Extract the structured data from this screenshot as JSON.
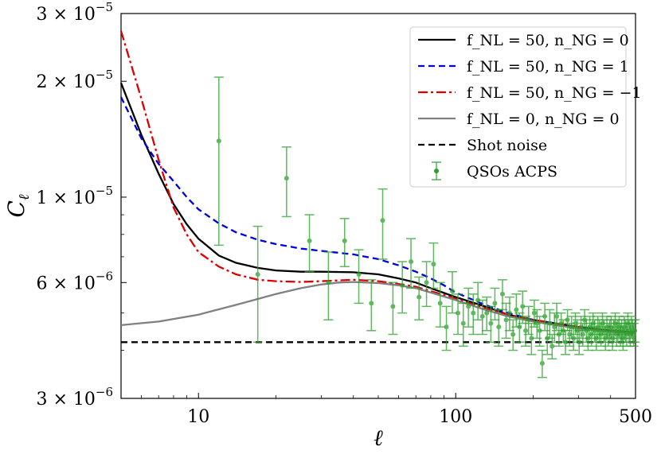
{
  "chart_data": {
    "type": "line",
    "xscale": "log",
    "yscale": "log",
    "xlim": [
      5,
      500
    ],
    "ylim": [
      3e-06,
      3e-05
    ],
    "xlabel": "ℓ",
    "ylabel": "C_ℓ",
    "x_ticks": [
      {
        "value": 10,
        "label": "10"
      },
      {
        "value": 100,
        "label": "100"
      },
      {
        "value": 500,
        "label": "500"
      }
    ],
    "y_ticks": [
      {
        "value": 3e-06,
        "base": "3 × 10",
        "exp": "−6"
      },
      {
        "value": 6e-06,
        "base": "6 × 10",
        "exp": "−6"
      },
      {
        "value": 1e-05,
        "base": "1 × 10",
        "exp": "−5"
      },
      {
        "value": 2e-05,
        "base": "2 × 10",
        "exp": "−5"
      },
      {
        "value": 3e-05,
        "base": "3 × 10",
        "exp": "−5"
      }
    ],
    "legend_position": "top-right",
    "series": [
      {
        "name": "f_NL = 50, n_NG = 0",
        "color": "#000000",
        "dash": "solid",
        "x": [
          5,
          6,
          7,
          8,
          9,
          10,
          12,
          14,
          17,
          20,
          25,
          30,
          40,
          50,
          60,
          70,
          80,
          100,
          130,
          160,
          200,
          300,
          400,
          500
        ],
        "y": [
          1.98e-05,
          1.45e-05,
          1.15e-05,
          9.6e-06,
          8.5e-06,
          7.8e-06,
          7.05e-06,
          6.75e-06,
          6.55e-06,
          6.45e-06,
          6.4e-06,
          6.4e-06,
          6.38e-06,
          6.3e-06,
          6.15e-06,
          6e-06,
          5.8e-06,
          5.5e-06,
          5.2e-06,
          4.95e-06,
          4.8e-06,
          4.6e-06,
          4.5e-06,
          4.45e-06
        ]
      },
      {
        "name": "f_NL = 50, n_NG = 1",
        "color": "#0000dd",
        "dash": "dashed",
        "x": [
          5,
          6,
          7,
          8,
          9,
          10,
          12,
          14,
          17,
          20,
          25,
          30,
          40,
          50,
          60,
          70,
          80,
          90,
          100,
          130,
          160,
          200,
          300,
          400,
          500
        ],
        "y": [
          1.82e-05,
          1.42e-05,
          1.22e-05,
          1.1e-05,
          1e-05,
          9.3e-06,
          8.55e-06,
          8.1e-06,
          7.75e-06,
          7.55e-06,
          7.35e-06,
          7.25e-06,
          7.1e-06,
          6.9e-06,
          6.65e-06,
          6.4e-06,
          6.15e-06,
          5.9e-06,
          5.65e-06,
          5.25e-06,
          5e-06,
          4.8e-06,
          4.6e-06,
          4.5e-06,
          4.45e-06
        ]
      },
      {
        "name": "f_NL = 50, n_NG = −1",
        "color": "#dd0000",
        "dash": "dashdot",
        "x": [
          5,
          6,
          7,
          8,
          9,
          10,
          12,
          14,
          17,
          20,
          25,
          30,
          40,
          50,
          60,
          70,
          80,
          100,
          130,
          160,
          200,
          300,
          400,
          500
        ],
        "y": [
          2.7e-05,
          1.8e-05,
          1.25e-05,
          9.4e-06,
          8e-06,
          7.2e-06,
          6.6e-06,
          6.3e-06,
          6.1e-06,
          6.05e-06,
          6.02e-06,
          6.05e-06,
          6.1e-06,
          6.05e-06,
          5.95e-06,
          5.85e-06,
          5.7e-06,
          5.45e-06,
          5.15e-06,
          4.95e-06,
          4.8e-06,
          4.6e-06,
          4.5e-06,
          4.45e-06
        ]
      },
      {
        "name": "f_NL = 0, n_NG = 0",
        "color": "#808080",
        "dash": "solid",
        "x": [
          5,
          7,
          10,
          14,
          20,
          25,
          30,
          35,
          40,
          50,
          60,
          70,
          80,
          100,
          130,
          160,
          200,
          300,
          400,
          500
        ],
        "y": [
          4.65e-06,
          4.75e-06,
          4.95e-06,
          5.25e-06,
          5.6e-06,
          5.8e-06,
          5.93e-06,
          6e-06,
          6.02e-06,
          5.98e-06,
          5.9e-06,
          5.8e-06,
          5.65e-06,
          5.4e-06,
          5.1e-06,
          4.9e-06,
          4.75e-06,
          4.55e-06,
          4.47e-06,
          4.43e-06
        ]
      },
      {
        "name": "Shot noise",
        "color": "#000000",
        "dash": "dashed",
        "x": [
          5,
          500
        ],
        "y": [
          4.2e-06,
          4.2e-06
        ]
      }
    ],
    "points": {
      "name": "QSOs ACPS",
      "color": "#2ca02c",
      "x": [
        12,
        17,
        22,
        27,
        32,
        37,
        42,
        47,
        52,
        57,
        62,
        67,
        72,
        77,
        82,
        87,
        92,
        97,
        102,
        107,
        112,
        117,
        122,
        127,
        132,
        137,
        142,
        147,
        152,
        157,
        162,
        167,
        172,
        177,
        182,
        187,
        192,
        197,
        202,
        207,
        212,
        217,
        222,
        227,
        232,
        237,
        242,
        247,
        252,
        257,
        262,
        267,
        272,
        277,
        282,
        287,
        292,
        297,
        302,
        307,
        312,
        317,
        322,
        327,
        332,
        337,
        342,
        347,
        352,
        357,
        362,
        367,
        372,
        377,
        382,
        387,
        392,
        397,
        402,
        407,
        412,
        417,
        422,
        427,
        432,
        437,
        442,
        447,
        452,
        457,
        462,
        467,
        472,
        477,
        482,
        487,
        492,
        497
      ],
      "y": [
        1.4e-05,
        6.3e-06,
        1.12e-05,
        7.7e-06,
        6e-06,
        7.7e-06,
        6.3e-06,
        5.3e-06,
        8.7e-06,
        5.2e-06,
        5.9e-06,
        6.8e-06,
        5.5e-06,
        6e-06,
        6.7e-06,
        5.3e-06,
        4.6e-06,
        5.7e-06,
        5e-06,
        4.7e-06,
        5.2e-06,
        5e-06,
        5.4e-06,
        4.9e-06,
        5e-06,
        4.7e-06,
        5.3e-06,
        4.6e-06,
        5.6e-06,
        4.8e-06,
        5e-06,
        4.4e-06,
        5.1e-06,
        4.6e-06,
        5.2e-06,
        4.5e-06,
        4.8e-06,
        4.3e-06,
        5e-06,
        4.7e-06,
        4.5e-06,
        3.7e-06,
        4.9e-06,
        4.3e-06,
        4.7e-06,
        4.1e-06,
        4.6e-06,
        4.9e-06,
        4.4e-06,
        4.7e-06,
        4.5e-06,
        4.2e-06,
        4.8e-06,
        4.4e-06,
        4.6e-06,
        4.3e-06,
        4.7e-06,
        4.5e-06,
        4.2e-06,
        4.6e-06,
        4.4e-06,
        4.8e-06,
        4.5e-06,
        4.3e-06,
        4.6e-06,
        4.4e-06,
        4.7e-06,
        4.5e-06,
        4.3e-06,
        4.6e-06,
        4.5e-06,
        4.4e-06,
        4.7e-06,
        4.5e-06,
        4.3e-06,
        4.6e-06,
        4.4e-06,
        4.5e-06,
        4.6e-06,
        4.3e-06,
        4.5e-06,
        4.7e-06,
        4.4e-06,
        4.5e-06,
        4.6e-06,
        4.4e-06,
        4.5e-06,
        4.3e-06,
        4.6e-06,
        4.5e-06,
        4.4e-06,
        4.7e-06,
        4.5e-06,
        4.4e-06,
        4.6e-06,
        4.5e-06,
        4.4e-06,
        4.5e-06
      ],
      "err": [
        6.5e-06,
        2.1e-06,
        2.3e-06,
        1.3e-06,
        1.2e-06,
        1.1e-06,
        1e-06,
        8e-07,
        1.8e-06,
        8e-07,
        9e-07,
        1e-06,
        7e-07,
        8e-07,
        9e-07,
        7e-07,
        6e-07,
        7e-07,
        6e-07,
        6e-07,
        6e-07,
        6e-07,
        6e-07,
        5e-07,
        5e-07,
        5e-07,
        5e-07,
        5e-07,
        5e-07,
        5e-07,
        5e-07,
        4e-07,
        5e-07,
        4e-07,
        5e-07,
        4e-07,
        4e-07,
        4e-07,
        4e-07,
        4e-07,
        4e-07,
        3e-07,
        4e-07,
        4e-07,
        4e-07,
        3e-07,
        4e-07,
        4e-07,
        3e-07,
        3e-07,
        3e-07,
        3e-07,
        3e-07,
        3e-07,
        3e-07,
        3e-07,
        3e-07,
        3e-07,
        3e-07,
        3e-07,
        3e-07,
        3e-07,
        3e-07,
        3e-07,
        3e-07,
        3e-07,
        3e-07,
        3e-07,
        3e-07,
        3e-07,
        3e-07,
        3e-07,
        3e-07,
        3e-07,
        3e-07,
        3e-07,
        3e-07,
        3e-07,
        3e-07,
        3e-07,
        3e-07,
        3e-07,
        3e-07,
        3e-07,
        3e-07,
        3e-07,
        3e-07,
        3e-07,
        3e-07,
        3e-07,
        3e-07,
        3e-07,
        3e-07,
        3e-07,
        3e-07,
        3e-07,
        3e-07,
        3e-07
      ]
    }
  }
}
